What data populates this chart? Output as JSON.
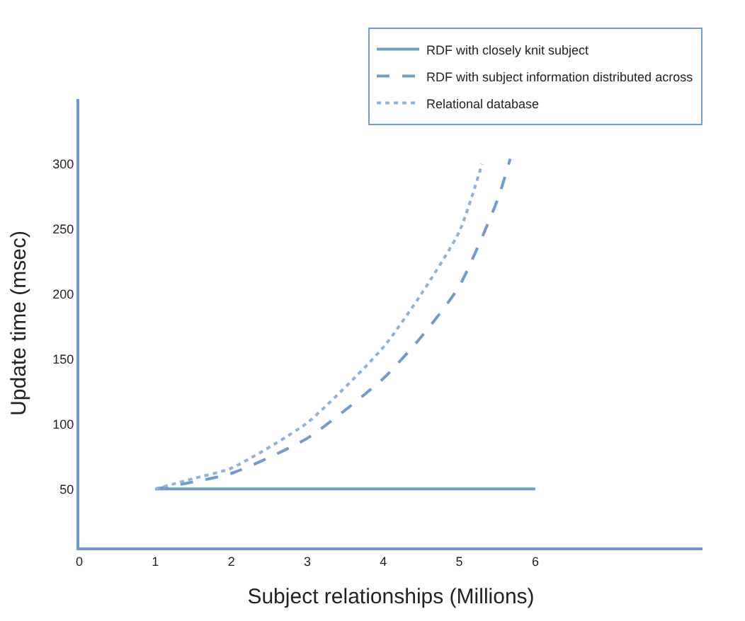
{
  "chart_data": {
    "type": "line",
    "xlabel": "Subject relationships (Millions)",
    "ylabel": "Update time (msec)",
    "xlim": [
      0,
      8.2
    ],
    "xticks": [
      0,
      1,
      2,
      3,
      4,
      5,
      6
    ],
    "ylim": [
      5,
      350
    ],
    "yticks": [
      50,
      100,
      150,
      200,
      250,
      300
    ],
    "legend": "top right",
    "marker": "none",
    "series": [
      {
        "name": "RDF with closely knit subject",
        "color": "#6f9bd0",
        "line_style": "solid",
        "x": [
          1,
          6
        ],
        "values": [
          50,
          50
        ]
      },
      {
        "name": "RDF with subject information distributed across",
        "color": "#6f9bd0",
        "line_style": "dashed",
        "x": [
          1,
          2,
          3,
          4,
          4.5,
          5,
          5.5,
          5.67
        ],
        "values": [
          50,
          62,
          89,
          135,
          167,
          206,
          272,
          304
        ]
      },
      {
        "name": "Relational database",
        "color": "#8fb2dc",
        "line_style": "dotted",
        "x": [
          1,
          1.5,
          2,
          3,
          4,
          4.5,
          5,
          5.3
        ],
        "values": [
          50,
          58,
          66,
          101,
          159,
          200,
          248,
          300
        ]
      }
    ]
  }
}
